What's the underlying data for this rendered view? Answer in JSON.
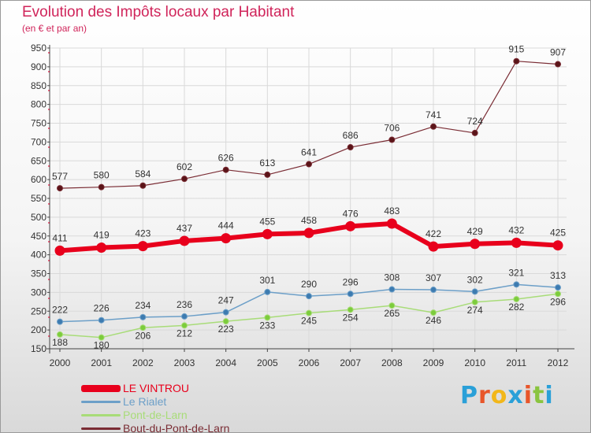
{
  "title": "Evolution des Impôts locaux par Habitant",
  "subtitle": "(en € et par an)",
  "logo": {
    "text": "Proxiti",
    "colors": [
      "#2aa0d8",
      "#e8562a",
      "#f2b71a",
      "#2aa0d8",
      "#e8562a",
      "#8ac43f",
      "#2aa0d8"
    ]
  },
  "colors": {
    "title": "#d0245a",
    "axis_ticks": "#333333",
    "grid": "#d9d9d9"
  },
  "chart_data": {
    "type": "line",
    "title": "Evolution des Impôts locaux par Habitant",
    "subtitle": "(en € et par an)",
    "x": [
      "2000",
      "2001",
      "2002",
      "2003",
      "2004",
      "2005",
      "2006",
      "2007",
      "2008",
      "2009",
      "2010",
      "2011",
      "2012"
    ],
    "yticks": [
      150,
      200,
      250,
      300,
      350,
      400,
      450,
      500,
      550,
      600,
      650,
      700,
      750,
      800,
      850,
      900,
      950
    ],
    "ylim": [
      150,
      950
    ],
    "grid": true,
    "legend_position": "bottom-left",
    "series": [
      {
        "name": "LE VINTROU",
        "color": "#e8001c",
        "values": [
          411,
          419,
          423,
          437,
          444,
          455,
          458,
          476,
          483,
          422,
          429,
          432,
          425
        ]
      },
      {
        "name": "Le Rialet",
        "color": "#6c9fc8",
        "values": [
          222,
          226,
          234,
          236,
          247,
          301,
          290,
          296,
          308,
          307,
          302,
          321,
          313
        ]
      },
      {
        "name": "Pont-de-Larn",
        "color": "#a8dc78",
        "values": [
          188,
          180,
          206,
          212,
          223,
          233,
          245,
          254,
          265,
          246,
          274,
          282,
          296
        ]
      },
      {
        "name": "Bout-du-Pont-de-Larn",
        "color": "#7a2c34",
        "values": [
          577,
          580,
          584,
          602,
          626,
          613,
          641,
          686,
          706,
          741,
          724,
          915,
          907
        ]
      }
    ]
  }
}
